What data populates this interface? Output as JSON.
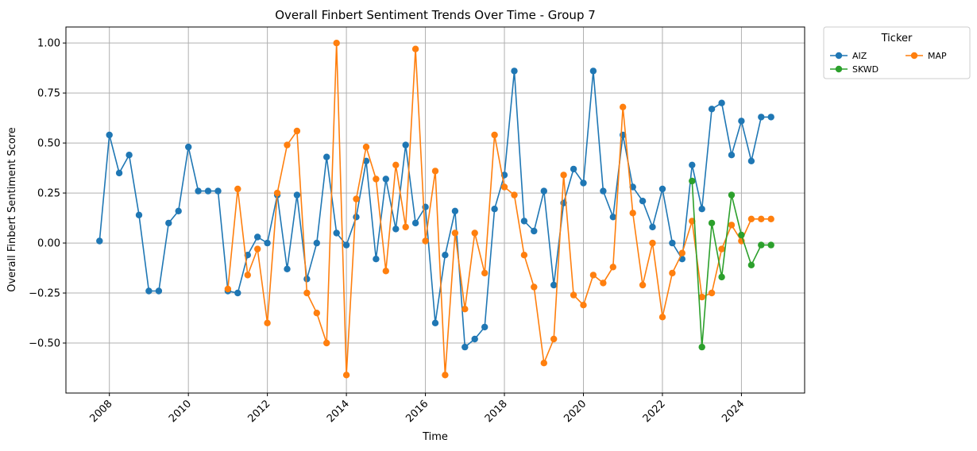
{
  "chart_data": {
    "type": "line",
    "title": "Overall Finbert Sentiment Trends Over Time - Group 7",
    "xlabel": "Time",
    "ylabel": "Overall Finbert Sentiment Score",
    "xlim": [
      2006.9,
      2025.6
    ],
    "ylim": [
      -0.75,
      1.08
    ],
    "x_ticks": [
      2008,
      2010,
      2012,
      2014,
      2016,
      2018,
      2020,
      2022,
      2024
    ],
    "x_tick_labels": [
      "2008",
      "2010",
      "2012",
      "2014",
      "2016",
      "2018",
      "2020",
      "2022",
      "2024"
    ],
    "y_ticks": [
      -0.5,
      -0.25,
      0.0,
      0.25,
      0.5,
      0.75,
      1.0
    ],
    "y_tick_labels": [
      "−0.50",
      "−0.25",
      "0.00",
      "0.25",
      "0.50",
      "0.75",
      "1.00"
    ],
    "grid": true,
    "legend": {
      "title": "Ticker",
      "placement": "outside-top-right",
      "columns": 2
    },
    "series": [
      {
        "name": "AIZ",
        "color": "#1f77b4",
        "x": [
          2007.75,
          2008.0,
          2008.25,
          2008.5,
          2008.75,
          2009.0,
          2009.25,
          2009.5,
          2009.75,
          2010.0,
          2010.25,
          2010.5,
          2010.75,
          2011.0,
          2011.25,
          2011.5,
          2011.75,
          2012.0,
          2012.25,
          2012.5,
          2012.75,
          2013.0,
          2013.25,
          2013.5,
          2013.75,
          2014.0,
          2014.25,
          2014.5,
          2014.75,
          2015.0,
          2015.25,
          2015.5,
          2015.75,
          2016.0,
          2016.25,
          2016.5,
          2016.75,
          2017.0,
          2017.25,
          2017.5,
          2017.75,
          2018.0,
          2018.25,
          2018.5,
          2018.75,
          2019.0,
          2019.25,
          2019.5,
          2019.75,
          2020.0,
          2020.25,
          2020.5,
          2020.75,
          2021.0,
          2021.25,
          2021.5,
          2021.75,
          2022.0,
          2022.25,
          2022.5,
          2022.75,
          2023.0,
          2023.25,
          2023.5,
          2023.75,
          2024.0,
          2024.25,
          2024.5,
          2024.75
        ],
        "y": [
          0.01,
          0.54,
          0.35,
          0.44,
          0.14,
          -0.24,
          -0.24,
          0.1,
          0.16,
          0.48,
          0.26,
          0.26,
          0.26,
          -0.24,
          -0.25,
          -0.06,
          0.03,
          0.0,
          0.24,
          -0.13,
          0.24,
          -0.18,
          0.0,
          0.43,
          0.05,
          -0.01,
          0.13,
          0.41,
          -0.08,
          0.32,
          0.07,
          0.49,
          0.1,
          0.18,
          -0.4,
          -0.06,
          0.16,
          -0.52,
          -0.48,
          -0.42,
          0.17,
          0.34,
          0.86,
          0.11,
          0.06,
          0.26,
          -0.21,
          0.2,
          0.37,
          0.3,
          0.86,
          0.26,
          0.13,
          0.54,
          0.28,
          0.21,
          0.08,
          0.27,
          0.0,
          -0.08,
          0.39,
          0.17,
          0.67,
          0.7,
          0.44,
          0.61,
          0.41,
          0.63,
          0.63
        ]
      },
      {
        "name": "MAP",
        "color": "#ff7f0e",
        "x": [
          2011.0,
          2011.25,
          2011.5,
          2011.75,
          2012.0,
          2012.25,
          2012.5,
          2012.75,
          2013.0,
          2013.25,
          2013.5,
          2013.75,
          2014.0,
          2014.25,
          2014.5,
          2014.75,
          2015.0,
          2015.25,
          2015.5,
          2015.75,
          2016.0,
          2016.25,
          2016.5,
          2016.75,
          2017.0,
          2017.25,
          2017.5,
          2017.75,
          2018.0,
          2018.25,
          2018.5,
          2018.75,
          2019.0,
          2019.25,
          2019.5,
          2019.75,
          2020.0,
          2020.25,
          2020.5,
          2020.75,
          2021.0,
          2021.25,
          2021.5,
          2021.75,
          2022.0,
          2022.25,
          2022.5,
          2022.75,
          2023.0,
          2023.25,
          2023.5,
          2023.75,
          2024.0,
          2024.25,
          2024.5,
          2024.75
        ],
        "y": [
          -0.23,
          0.27,
          -0.16,
          -0.03,
          -0.4,
          0.25,
          0.49,
          0.56,
          -0.25,
          -0.35,
          -0.5,
          1.0,
          -0.66,
          0.22,
          0.48,
          0.32,
          -0.14,
          0.39,
          0.08,
          0.97,
          0.01,
          0.36,
          -0.66,
          0.05,
          -0.33,
          0.05,
          -0.15,
          0.54,
          0.28,
          0.24,
          -0.06,
          -0.22,
          -0.6,
          -0.48,
          0.34,
          -0.26,
          -0.31,
          -0.16,
          -0.2,
          -0.12,
          0.68,
          0.15,
          -0.21,
          0.0,
          -0.37,
          -0.15,
          -0.05,
          0.11,
          -0.27,
          -0.25,
          -0.03,
          0.09,
          0.01,
          0.12,
          0.12,
          0.12
        ]
      },
      {
        "name": "SKWD",
        "color": "#2ca02c",
        "x": [
          2022.75,
          2023.0,
          2023.25,
          2023.5,
          2023.75,
          2024.0,
          2024.25,
          2024.5,
          2024.75
        ],
        "y": [
          0.31,
          -0.52,
          0.1,
          -0.17,
          0.24,
          0.04,
          -0.11,
          -0.01,
          -0.01
        ]
      }
    ]
  }
}
